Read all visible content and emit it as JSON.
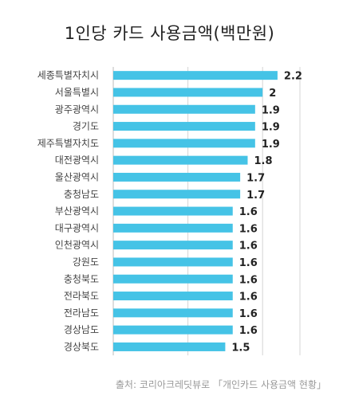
{
  "chart_data": {
    "type": "bar",
    "orientation": "horizontal",
    "title": "1인당 카드 사용금액(백만원)",
    "categories": [
      "세종특별자치시",
      "서울특별시",
      "광주광역시",
      "경기도",
      "제주특별자치도",
      "대전광역시",
      "울산광역시",
      "충청남도",
      "부산광역시",
      "대구광역시",
      "인천광역시",
      "강원도",
      "충청북도",
      "전라북도",
      "전라남도",
      "경상남도",
      "경상북도"
    ],
    "values": [
      2.2,
      2,
      1.9,
      1.9,
      1.9,
      1.8,
      1.7,
      1.7,
      1.6,
      1.6,
      1.6,
      1.6,
      1.6,
      1.6,
      1.6,
      1.6,
      1.5
    ],
    "value_labels": [
      "2.2",
      "2",
      "1.9",
      "1.9",
      "1.9",
      "1.8",
      "1.7",
      "1.7",
      "1.6",
      "1.6",
      "1.6",
      "1.6",
      "1.6",
      "1.6",
      "1.6",
      "1.6",
      "1.5"
    ],
    "xlim": [
      0,
      2.5
    ],
    "grid": true,
    "bar_color": "#45c3e6",
    "gridline_color": "#d4d4d4",
    "source": "출처: 코리아크레딧뷰로 「개인카드 사용금액 현황」"
  }
}
